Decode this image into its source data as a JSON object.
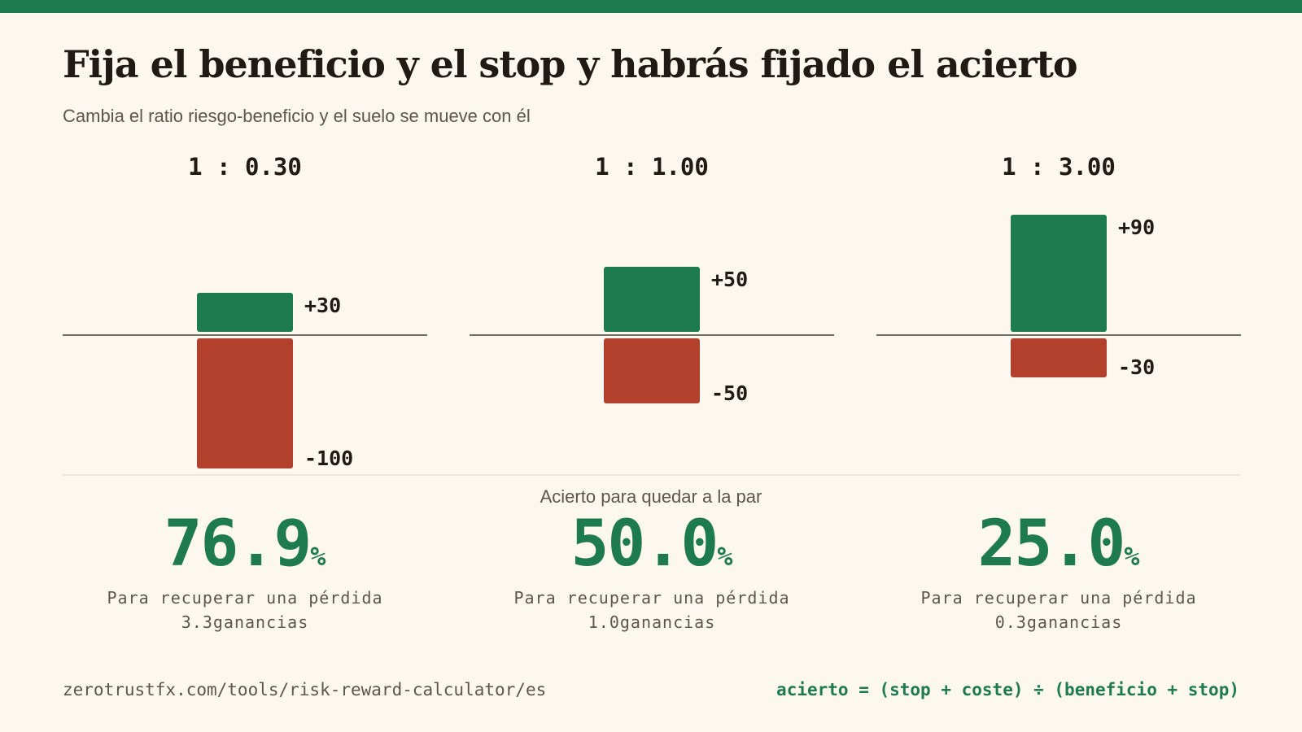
{
  "header": {
    "title": "Fija el beneficio y el stop y habrás fijado el acierto",
    "subtitle": "Cambia el ratio riesgo-beneficio y el suelo se mueve con él"
  },
  "chart_data": [
    {
      "type": "bar",
      "ratio_label": "1 : 0.30",
      "categories": [
        "beneficio",
        "stop"
      ],
      "values": [
        30,
        -100
      ],
      "value_labels": [
        "+30",
        "-100"
      ]
    },
    {
      "type": "bar",
      "ratio_label": "1 : 1.00",
      "categories": [
        "beneficio",
        "stop"
      ],
      "values": [
        50,
        -50
      ],
      "value_labels": [
        "+50",
        "-50"
      ]
    },
    {
      "type": "bar",
      "ratio_label": "1 : 3.00",
      "categories": [
        "beneficio",
        "stop"
      ],
      "values": [
        90,
        -30
      ],
      "value_labels": [
        "+90",
        "-30"
      ]
    }
  ],
  "breakeven": {
    "label": "Acierto para quedar a la par",
    "percent_sign": "%",
    "items": [
      {
        "value": "76.9",
        "note_line1": "Para recuperar una pérdida",
        "note_line2": "3.3ganancias"
      },
      {
        "value": "50.0",
        "note_line1": "Para recuperar una pérdida",
        "note_line2": "1.0ganancias"
      },
      {
        "value": "25.0",
        "note_line1": "Para recuperar una pérdida",
        "note_line2": "0.3ganancias"
      }
    ]
  },
  "footer": {
    "url": "zerotrustfx.com/tools/risk-reward-calculator/es",
    "formula": "acierto = (stop + coste) ÷ (beneficio + stop)"
  },
  "colors": {
    "accent": "#1e7a4f",
    "profit": "#1e7a4f",
    "loss": "#b3402c",
    "background": "#fcf8ef"
  }
}
